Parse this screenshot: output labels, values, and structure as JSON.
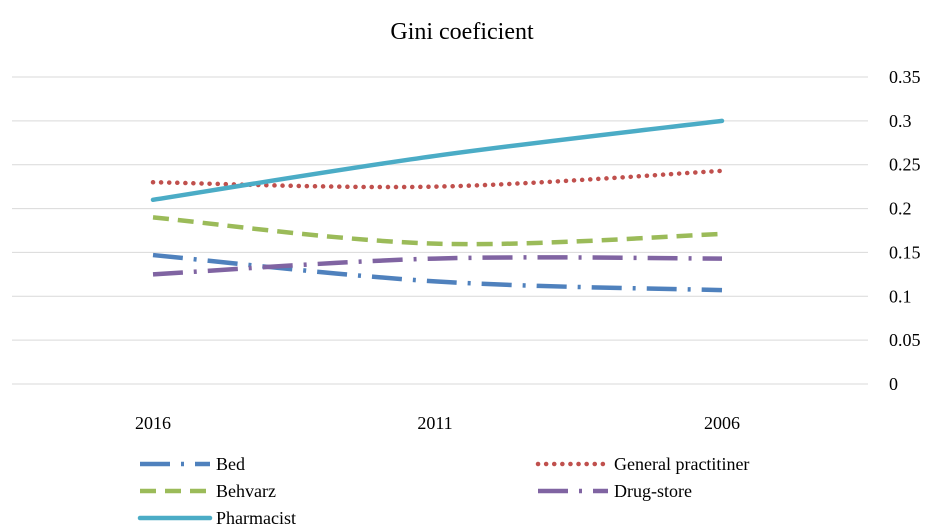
{
  "chart_data": {
    "type": "line",
    "title": "Gini coeficient",
    "categories": [
      "2016",
      "2011",
      "2006"
    ],
    "ylim": [
      0,
      0.35
    ],
    "yticks": [
      0,
      0.05,
      0.1,
      0.15,
      0.2,
      0.25,
      0.3,
      0.35
    ],
    "ytick_labels": [
      "0",
      "0.05",
      "0.1",
      "0.15",
      "0.2",
      "0.25",
      "0.3",
      "0.35"
    ],
    "y_axis_side": "right",
    "grid": true,
    "legend_position": "bottom",
    "series": [
      {
        "name": "Bed",
        "values": [
          0.147,
          0.117,
          0.107
        ],
        "color": "#4f81bd",
        "style": "long-dash-dot"
      },
      {
        "name": "General practitiner",
        "values": [
          0.23,
          0.225,
          0.243
        ],
        "color": "#c0504d",
        "style": "round-dot"
      },
      {
        "name": "Behvarz",
        "values": [
          0.19,
          0.16,
          0.171
        ],
        "color": "#9bbb59",
        "style": "dash"
      },
      {
        "name": "Drug-store",
        "values": [
          0.125,
          0.143,
          0.143
        ],
        "color": "#8064a2",
        "style": "long-dash-dot"
      },
      {
        "name": "Pharmacist",
        "values": [
          0.21,
          0.26,
          0.3
        ],
        "color": "#4bacc6",
        "style": "solid"
      }
    ]
  }
}
